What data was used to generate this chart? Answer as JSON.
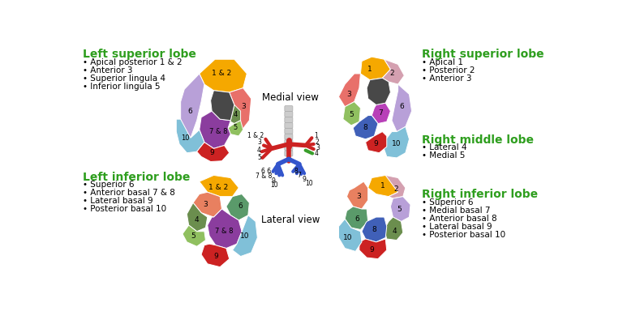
{
  "bg_color": "#ffffff",
  "green_color": "#2e9e1e",
  "left_sup_title": "Left superior lobe",
  "left_sup_bullets": [
    "Apical posterior 1 & 2",
    "Anterior 3",
    "Superior lingula 4",
    "Inferior lingula 5"
  ],
  "left_inf_title": "Left inferior lobe",
  "left_inf_bullets": [
    "Superior 6",
    "Anterior basal 7 & 8",
    "Lateral basal 9",
    "Posterior basal 10"
  ],
  "right_sup_title": "Right superior lobe",
  "right_sup_bullets": [
    "Apical 1",
    "Posterior 2",
    "Anterior 3"
  ],
  "right_mid_title": "Right middle lobe",
  "right_mid_bullets": [
    "Lateral 4",
    "Medial 5"
  ],
  "right_inf_title": "Right inferior lobe",
  "right_inf_bullets": [
    "Superior 6",
    "Medial basal 7",
    "Anterior basal 8",
    "Lateral basal 9",
    "Posterior basal 10"
  ],
  "medial_view_label": "Medial view",
  "lateral_view_label": "Lateral view",
  "col_orange": "#f5a800",
  "col_salmon": "#e8706a",
  "col_purple": "#8b3d9e",
  "col_dark_gray": "#484848",
  "col_olive": "#6b8e4e",
  "col_ltgreen": "#90c060",
  "col_ltblue": "#80c0d8",
  "col_red": "#cc2222",
  "col_magenta": "#b840b8",
  "col_blue": "#4060b8",
  "col_lavender": "#b8a0d8",
  "col_teal": "#5a9a6a",
  "col_peach": "#d4a0b0",
  "col_coral": "#e88060",
  "col_dkgreen": "#4a7a4a"
}
